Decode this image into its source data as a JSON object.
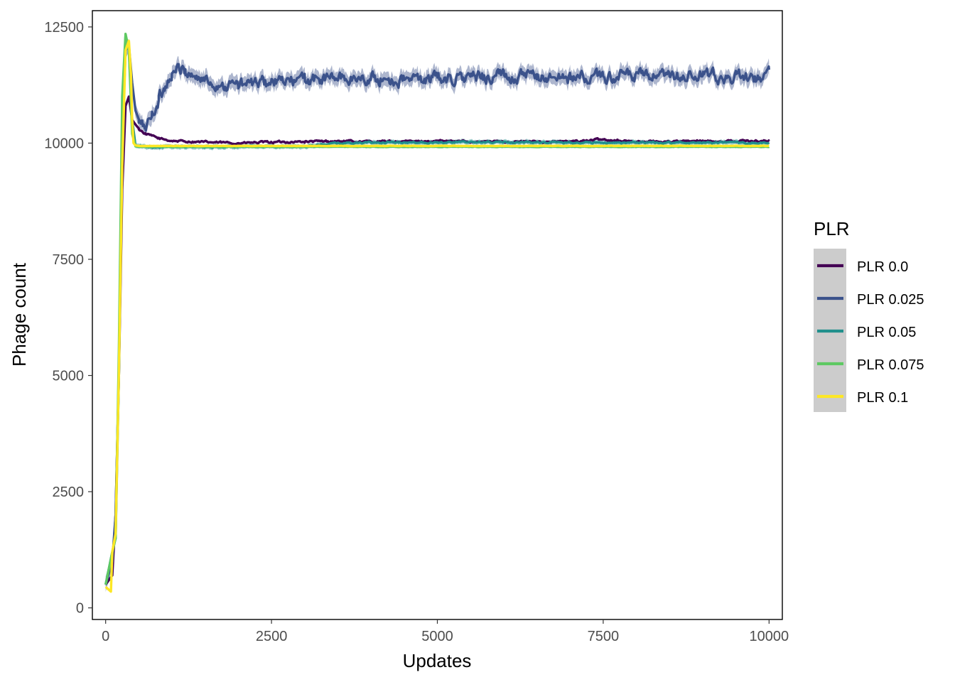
{
  "chart_data": {
    "type": "line",
    "title": "",
    "xlabel": "Updates",
    "ylabel": "Phage count",
    "xlim": [
      -200,
      10200
    ],
    "ylim": [
      -250,
      12850
    ],
    "x_ticks": [
      0,
      2500,
      5000,
      7500,
      10000
    ],
    "y_ticks": [
      0,
      2500,
      5000,
      7500,
      10000,
      12500
    ],
    "x_tick_labels": [
      "0",
      "2500",
      "5000",
      "7500",
      "10000"
    ],
    "y_tick_labels": [
      "0",
      "2500",
      "5000",
      "7500",
      "10000",
      "12500"
    ],
    "grid": false,
    "legend": {
      "title": "PLR",
      "position": "right",
      "background": "#cccccc"
    },
    "series": [
      {
        "name": "PLR 0.0",
        "color": "#440154",
        "x": [
          0,
          100,
          150,
          200,
          250,
          300,
          350,
          400,
          450,
          500,
          600,
          800,
          1000,
          1500,
          2000,
          2500,
          3000,
          3500,
          4000,
          5000,
          6000,
          7000,
          7500,
          8000,
          9000,
          10000
        ],
        "values": [
          500,
          700,
          2000,
          5000,
          9000,
          10800,
          11000,
          10500,
          10400,
          10300,
          10200,
          10100,
          10050,
          10020,
          10000,
          10020,
          10030,
          10040,
          10030,
          10040,
          10030,
          10030,
          10080,
          10030,
          10040,
          10050
        ],
        "band": 30,
        "noise": 18
      },
      {
        "name": "PLR 0.025",
        "color": "#3b528b",
        "x": [
          0,
          100,
          150,
          200,
          250,
          300,
          350,
          400,
          450,
          500,
          550,
          600,
          700,
          800,
          900,
          1000,
          1100,
          1200,
          1400,
          1600,
          1800,
          2000,
          2500,
          3000,
          3500,
          4000,
          4500,
          5000,
          5500,
          6000,
          6500,
          7000,
          7500,
          8000,
          8500,
          9000,
          9500,
          10000
        ],
        "values": [
          500,
          1000,
          2000,
          5000,
          10000,
          12000,
          12100,
          11300,
          10700,
          10450,
          10350,
          10350,
          10600,
          10950,
          11250,
          11500,
          11600,
          11550,
          11400,
          11300,
          11250,
          11250,
          11300,
          11350,
          11400,
          11380,
          11350,
          11400,
          11400,
          11450,
          11420,
          11400,
          11420,
          11450,
          11400,
          11450,
          11400,
          11450
        ],
        "band": 180,
        "noise": 110
      },
      {
        "name": "PLR 0.05",
        "color": "#21908c",
        "x": [
          0,
          100,
          150,
          200,
          250,
          300,
          350,
          400,
          450,
          500,
          600,
          1000,
          2000,
          3000,
          3500,
          4000,
          5000,
          6000,
          7000,
          8000,
          9000,
          10000
        ],
        "values": [
          500,
          1200,
          1500,
          5000,
          10500,
          12300,
          12000,
          10500,
          9950,
          9930,
          9920,
          9920,
          9920,
          9930,
          10000,
          10010,
          10020,
          10020,
          10010,
          10010,
          10010,
          10000
        ],
        "band": 60,
        "noise": 14
      },
      {
        "name": "PLR 0.075",
        "color": "#5ec962",
        "x": [
          0,
          100,
          150,
          200,
          250,
          300,
          350,
          400,
          450,
          500,
          1000,
          2000,
          4000,
          6000,
          8000,
          10000
        ],
        "values": [
          500,
          1200,
          1500,
          5500,
          11000,
          12350,
          12000,
          10200,
          9930,
          9920,
          9920,
          9920,
          9920,
          9920,
          9920,
          9920
        ],
        "band": 8,
        "noise": 4
      },
      {
        "name": "PLR 0.1",
        "color": "#fde725",
        "x": [
          0,
          80,
          100,
          150,
          200,
          250,
          300,
          350,
          380,
          400,
          420,
          450,
          500,
          600,
          1000,
          2000,
          4000,
          6000,
          8000,
          10000
        ],
        "values": [
          450,
          350,
          1200,
          1600,
          5000,
          9500,
          12000,
          12200,
          11500,
          10500,
          10000,
          9950,
          9940,
          9940,
          9940,
          9940,
          9940,
          9940,
          9940,
          9940
        ],
        "band": 6,
        "noise": 3
      }
    ]
  }
}
